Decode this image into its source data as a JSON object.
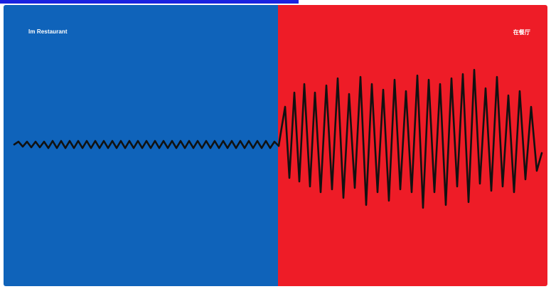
{
  "left_panel": {
    "label": "Im Restaurant",
    "background_color": "#0f63ba"
  },
  "right_panel": {
    "label": "在餐厅",
    "background_color": "#ee1c27"
  },
  "colors": {
    "link_underline": "#1a22e0",
    "wave": "#111111",
    "label_text": "#ffffff"
  }
}
